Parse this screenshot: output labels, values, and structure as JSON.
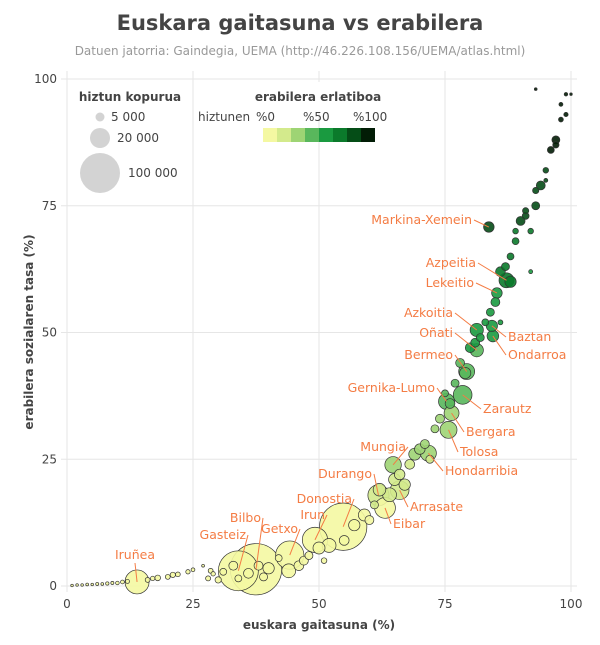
{
  "chart_data": {
    "type": "scatter",
    "title": "Euskara gaitasuna vs erabilera",
    "subtitle": "Datuen jatorria: Gaindegia, UEMA (http://46.226.108.156/UEMA/atlas.html)",
    "xlabel": "euskara gaitasuna (%)",
    "ylabel": "erabilera sozialaren tasa (%)",
    "xlim": [
      0,
      100
    ],
    "ylim": [
      0,
      100
    ],
    "xticks": [
      "0",
      "25",
      "50",
      "75",
      "100"
    ],
    "yticks": [
      "0",
      "25",
      "50",
      "75",
      "100"
    ],
    "grid": true,
    "size_legend": {
      "title": "hiztun kopurua",
      "entries": [
        {
          "label": "5 000",
          "value": 5000
        },
        {
          "label": "20 000",
          "value": 20000
        },
        {
          "label": "100 000",
          "value": 100000
        }
      ],
      "placement": "top-left"
    },
    "color_legend": {
      "title": "erabilera erlatiboa",
      "prefix": "hiztunen",
      "labels": [
        "%0",
        "%50",
        "%100"
      ],
      "colors": [
        "#f4f8a2",
        "#d3ea8c",
        "#9ed474",
        "#59b75c",
        "#1a9a40",
        "#0b7a2b",
        "#054d17",
        "#021d06"
      ],
      "placement": "top"
    },
    "label_color": "#f47c44",
    "labeled_points": [
      {
        "name": "Markina-Xemein",
        "x": 83.7,
        "y": 70.8,
        "speakers": 7000
      },
      {
        "name": "Azpeitia",
        "x": 87.2,
        "y": 60.3,
        "speakers": 14000
      },
      {
        "name": "Lekeitio",
        "x": 85.3,
        "y": 57.8,
        "speakers": 7000
      },
      {
        "name": "Azkoitia",
        "x": 81.3,
        "y": 50.5,
        "speakers": 11000
      },
      {
        "name": "Oñati",
        "x": 81.3,
        "y": 46.5,
        "speakers": 11000
      },
      {
        "name": "Bermeo",
        "x": 79.3,
        "y": 42.3,
        "speakers": 16000
      },
      {
        "name": "Gernika-Lumo",
        "x": 75.3,
        "y": 36.4,
        "speakers": 16000
      },
      {
        "name": "Baztan",
        "x": 84.3,
        "y": 51.3,
        "speakers": 8000
      },
      {
        "name": "Ondarroa",
        "x": 84.5,
        "y": 49.3,
        "speakers": 8500
      },
      {
        "name": "Zarautz",
        "x": 78.5,
        "y": 37.7,
        "speakers": 22000
      },
      {
        "name": "Bergara",
        "x": 76.3,
        "y": 34.1,
        "speakers": 14000
      },
      {
        "name": "Tolosa",
        "x": 75.7,
        "y": 30.8,
        "speakers": 18000
      },
      {
        "name": "Hondarribia",
        "x": 71.7,
        "y": 26.2,
        "speakers": 16000
      },
      {
        "name": "Mungia",
        "x": 64.7,
        "y": 23.9,
        "speakers": 17000
      },
      {
        "name": "Durango",
        "x": 61.8,
        "y": 17.9,
        "speakers": 28000
      },
      {
        "name": "Arrasate",
        "x": 66.0,
        "y": 18.9,
        "speakers": 22000
      },
      {
        "name": "Eibar",
        "x": 63.1,
        "y": 15.4,
        "speakers": 27000
      },
      {
        "name": "Donostia",
        "x": 54.8,
        "y": 11.7,
        "speakers": 140000
      },
      {
        "name": "Irun",
        "x": 49.2,
        "y": 9.1,
        "speakers": 40000
      },
      {
        "name": "Getxo",
        "x": 44.2,
        "y": 6.1,
        "speakers": 50000
      },
      {
        "name": "Bilbo",
        "x": 37.5,
        "y": 3.3,
        "speakers": 165000
      },
      {
        "name": "Gasteiz",
        "x": 34.0,
        "y": 3.0,
        "speakers": 100000
      },
      {
        "name": "Iruñea",
        "x": 13.9,
        "y": 0.8,
        "speakers": 36000
      }
    ],
    "other_points": [
      [
        1,
        0.1,
        300
      ],
      [
        2,
        0.2,
        400
      ],
      [
        3,
        0.2,
        300
      ],
      [
        4,
        0.3,
        500
      ],
      [
        5,
        0.3,
        400
      ],
      [
        6,
        0.4,
        600
      ],
      [
        7,
        0.4,
        500
      ],
      [
        8,
        0.5,
        700
      ],
      [
        9,
        0.6,
        600
      ],
      [
        10,
        0.6,
        800
      ],
      [
        11,
        0.8,
        900
      ],
      [
        12,
        0.9,
        1000
      ],
      [
        16,
        1.2,
        1500
      ],
      [
        17,
        1.5,
        1200
      ],
      [
        18,
        1.6,
        2000
      ],
      [
        20,
        1.8,
        1500
      ],
      [
        21,
        2.2,
        1800
      ],
      [
        22,
        2.3,
        1400
      ],
      [
        24,
        2.8,
        1200
      ],
      [
        25,
        3.2,
        900
      ],
      [
        27,
        4,
        500
      ],
      [
        28,
        1.5,
        1600
      ],
      [
        28.5,
        3,
        1500
      ],
      [
        29,
        2.4,
        1200
      ],
      [
        30,
        1.2,
        2500
      ],
      [
        31,
        2.8,
        3000
      ],
      [
        33,
        4,
        5000
      ],
      [
        34,
        1.5,
        3000
      ],
      [
        36,
        2.5,
        6000
      ],
      [
        38,
        4,
        5000
      ],
      [
        39,
        1.8,
        4000
      ],
      [
        40,
        3.5,
        8000
      ],
      [
        42,
        5.5,
        3000
      ],
      [
        44,
        3,
        12000
      ],
      [
        46,
        4,
        6000
      ],
      [
        47,
        5,
        5000
      ],
      [
        48,
        6,
        4000
      ],
      [
        50,
        7.5,
        9000
      ],
      [
        51,
        5,
        2000
      ],
      [
        52,
        8,
        12000
      ],
      [
        55,
        9,
        6000
      ],
      [
        57,
        12,
        8000
      ],
      [
        59,
        14,
        9000
      ],
      [
        60,
        13,
        5000
      ],
      [
        61,
        16,
        4000
      ],
      [
        62,
        19,
        10000
      ],
      [
        64,
        18,
        12000
      ],
      [
        65,
        21,
        9000
      ],
      [
        66,
        22,
        7000
      ],
      [
        67,
        20,
        8000
      ],
      [
        68,
        24,
        6000
      ],
      [
        69,
        26,
        9000
      ],
      [
        70,
        27,
        7000
      ],
      [
        71,
        28,
        5000
      ],
      [
        72,
        25,
        4000
      ],
      [
        73,
        31,
        4000
      ],
      [
        74,
        33,
        5000
      ],
      [
        75,
        38,
        3000
      ],
      [
        76,
        36,
        6000
      ],
      [
        77,
        40,
        4000
      ],
      [
        78,
        44,
        5000
      ],
      [
        79,
        42,
        8000
      ],
      [
        80,
        47,
        6000
      ],
      [
        81,
        48,
        5000
      ],
      [
        82,
        49,
        4000
      ],
      [
        83,
        52,
        3000
      ],
      [
        84,
        54,
        4000
      ],
      [
        85,
        56,
        5000
      ],
      [
        86,
        62,
        6000
      ],
      [
        87,
        63,
        4000
      ],
      [
        88,
        60,
        8000
      ],
      [
        88,
        65,
        3000
      ],
      [
        89,
        68,
        3000
      ],
      [
        90,
        72,
        5000
      ],
      [
        91,
        73,
        3000
      ],
      [
        92,
        70,
        2000
      ],
      [
        93,
        75,
        4000
      ],
      [
        93,
        78,
        2500
      ],
      [
        94,
        79,
        5000
      ],
      [
        95,
        82,
        2000
      ],
      [
        96,
        86,
        3000
      ],
      [
        97,
        87,
        2500
      ],
      [
        97,
        88,
        4000
      ],
      [
        98,
        92,
        1500
      ],
      [
        99,
        93,
        1200
      ],
      [
        98,
        95,
        1000
      ],
      [
        99,
        97,
        800
      ],
      [
        86,
        52,
        1500
      ],
      [
        92,
        62,
        1000
      ],
      [
        95,
        80,
        1000
      ],
      [
        89,
        70,
        2000
      ],
      [
        91,
        74,
        2500
      ],
      [
        93,
        98,
        500
      ],
      [
        100,
        97,
        400
      ]
    ]
  }
}
